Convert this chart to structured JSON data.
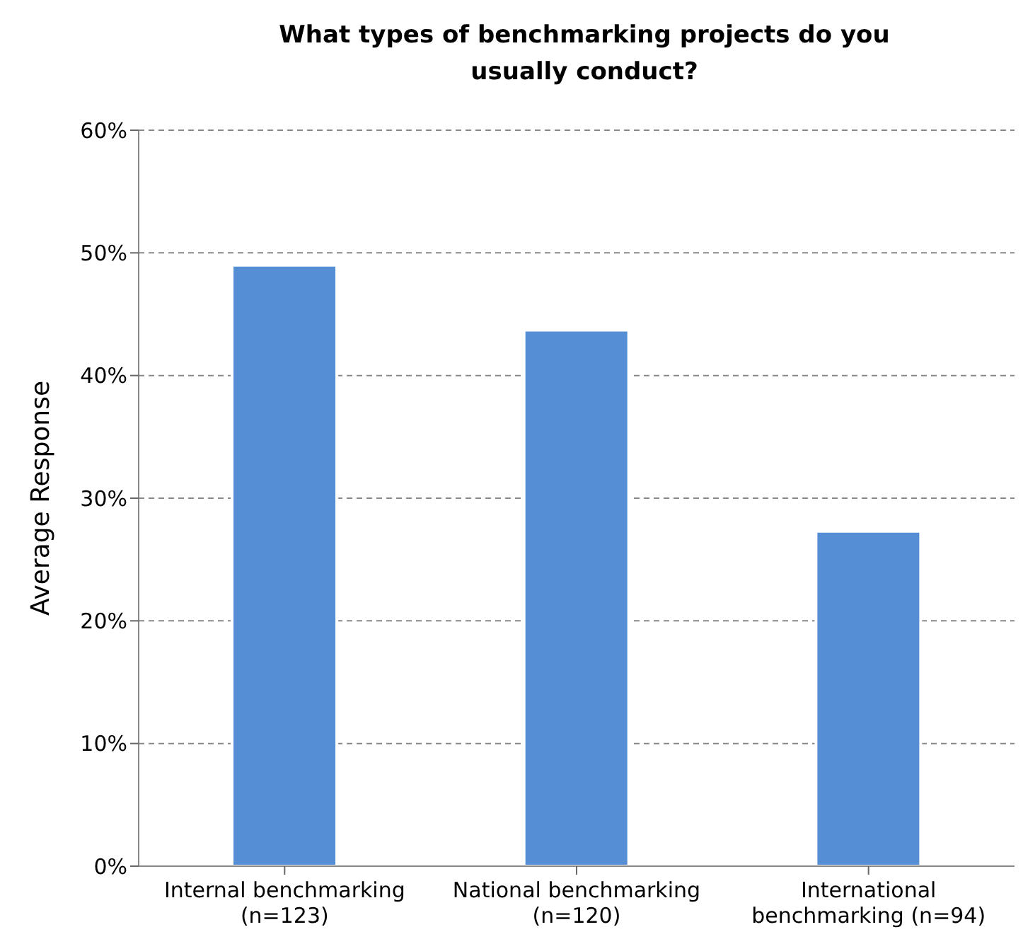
{
  "chart_data": {
    "type": "bar",
    "title": "What types of benchmarking projects do you usually conduct?",
    "ylabel": "Average Response",
    "categories": [
      "Internal benchmarking\n(n=123)",
      "National benchmarking\n(n=120)",
      "International\nbenchmarking (n=94)"
    ],
    "values": [
      49,
      43.7,
      27.3
    ],
    "color": "#558ed5",
    "ylim": [
      0,
      60
    ],
    "yticks": [
      {
        "value": 0,
        "label": "0%"
      },
      {
        "value": 10,
        "label": "10%"
      },
      {
        "value": 20,
        "label": "20%"
      },
      {
        "value": 30,
        "label": "30%"
      },
      {
        "value": 40,
        "label": "40%"
      },
      {
        "value": 50,
        "label": "50%"
      },
      {
        "value": 60,
        "label": "60%"
      }
    ],
    "grid": "y"
  }
}
